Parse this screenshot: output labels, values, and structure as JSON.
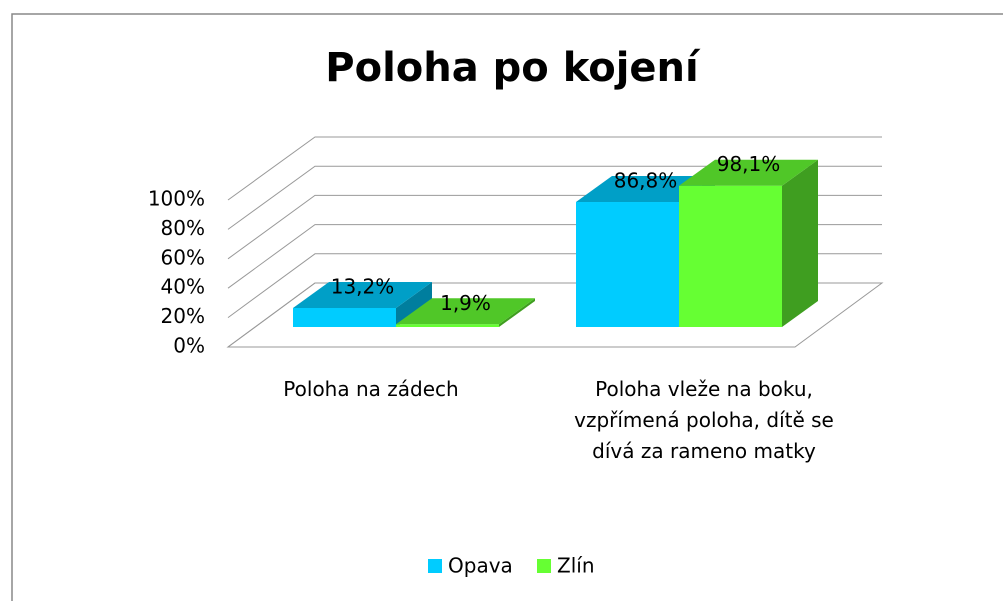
{
  "chart_data": {
    "type": "bar3d",
    "title": "Poloha po kojení",
    "categories": [
      "Poloha na zádech",
      "Poloha vleže na boku, vzpřímená poloha, dítě se dívá za rameno matky"
    ],
    "series": [
      {
        "name": "Opava",
        "color": "#00ccff",
        "values": [
          13.2,
          86.8
        ],
        "value_labels": [
          "13,2%",
          "86,8%"
        ]
      },
      {
        "name": "Zlín",
        "color": "#66ff33",
        "values": [
          1.9,
          98.1
        ],
        "value_labels": [
          "1,9%",
          "98,1%"
        ]
      }
    ],
    "ylim": [
      0,
      100
    ],
    "yticks": [
      {
        "value": 0,
        "label": "0%"
      },
      {
        "value": 20,
        "label": "20%"
      },
      {
        "value": 40,
        "label": "40%"
      },
      {
        "value": 60,
        "label": "60%"
      },
      {
        "value": 80,
        "label": "80%"
      },
      {
        "value": 100,
        "label": "100%"
      }
    ],
    "grid": true,
    "legend": "bottom"
  }
}
